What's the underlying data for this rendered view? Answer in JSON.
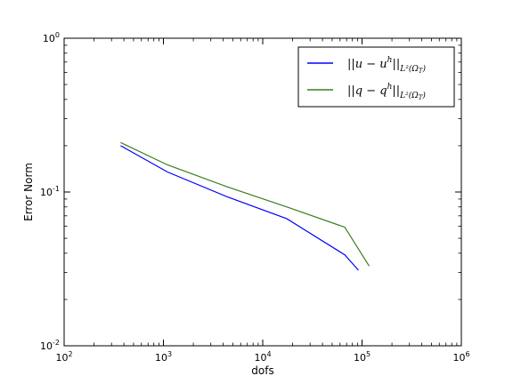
{
  "chart_data": {
    "type": "line",
    "xlabel": "dofs",
    "ylabel": "Error Norm",
    "xscale": "log",
    "yscale": "log",
    "xlim": [
      100,
      1000000
    ],
    "ylim": [
      0.01,
      1
    ],
    "grid": false,
    "legend_position": "top-right",
    "x_tick_labels": [
      {
        "base": "10",
        "exp": "2"
      },
      {
        "base": "10",
        "exp": "3"
      },
      {
        "base": "10",
        "exp": "4"
      },
      {
        "base": "10",
        "exp": "5"
      },
      {
        "base": "10",
        "exp": "6"
      }
    ],
    "y_tick_labels": [
      {
        "base": "10",
        "exp": "-2"
      },
      {
        "base": "10",
        "exp": "-1"
      },
      {
        "base": "10",
        "exp": "0"
      }
    ],
    "series": [
      {
        "name": "||u − u^h||_{L²(Ω_T)}",
        "legend_main": "||u − u",
        "legend_sup": "h",
        "legend_close": "||",
        "legend_sub": "L²(Ω",
        "legend_subsub": "T",
        "legend_subclose": ")",
        "color": "#0000ff",
        "x": [
          370,
          1100,
          4400,
          17500,
          67000,
          92000
        ],
        "y": [
          0.2,
          0.135,
          0.093,
          0.067,
          0.039,
          0.031
        ]
      },
      {
        "name": "||q − q^h||_{L²(Ω_T)}",
        "legend_main": "||q − q",
        "legend_sup": "h",
        "legend_close": "||",
        "legend_sub": "L²(Ω",
        "legend_subsub": "T",
        "legend_subclose": ")",
        "color": "#3a7d1e",
        "x": [
          370,
          1100,
          4400,
          17500,
          67000,
          118000
        ],
        "y": [
          0.21,
          0.15,
          0.108,
          0.08,
          0.059,
          0.033
        ]
      }
    ]
  }
}
